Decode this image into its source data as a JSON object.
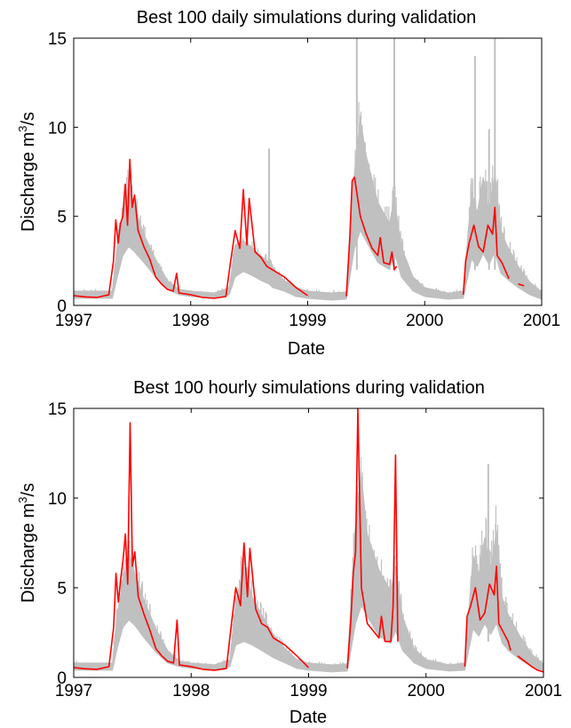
{
  "chart_data": [
    {
      "type": "line",
      "title": "Best 100 daily simulations during validation",
      "xlabel": "Date",
      "ylabel": "Discharge m",
      "ylabel_superscript": "3",
      "ylabel_suffix": "/s",
      "xlim": [
        1997,
        2001
      ],
      "ylim": [
        0,
        15
      ],
      "xticks": [
        1997,
        1998,
        1999,
        2000,
        2001
      ],
      "yticks": [
        0,
        5,
        10,
        15
      ],
      "grid": false,
      "colors": {
        "observed": "#ff0000",
        "simulations": "#c0c0c0"
      },
      "series": [
        {
          "role": "simulation envelope (best 100)",
          "type": "area",
          "x": [
            1997.0,
            1997.33,
            1997.37,
            1997.42,
            1997.47,
            1997.52,
            1997.6,
            1997.7,
            1997.8,
            1997.9,
            1998.0,
            1998.2,
            1998.33,
            1998.38,
            1998.45,
            1998.52,
            1998.6,
            1998.67,
            1998.7,
            1998.8,
            1998.9,
            1999.0,
            1999.2,
            1999.33,
            1999.4,
            1999.45,
            1999.5,
            1999.6,
            1999.7,
            1999.74,
            1999.8,
            1999.9,
            2000.0,
            2000.2,
            2000.33,
            2000.4,
            2000.45,
            2000.5,
            2000.55,
            2000.6,
            2000.65,
            2000.7,
            2000.8,
            2000.9,
            2001.0
          ],
          "low": [
            0.4,
            0.4,
            1.5,
            2.8,
            3.3,
            3.0,
            2.4,
            1.6,
            0.9,
            0.6,
            0.5,
            0.4,
            0.6,
            1.6,
            1.9,
            1.7,
            1.4,
            1.2,
            1.0,
            0.8,
            0.5,
            0.4,
            0.3,
            0.35,
            3.2,
            4.2,
            3.6,
            2.4,
            2.0,
            3.0,
            1.6,
            0.8,
            0.5,
            0.35,
            0.4,
            2.6,
            2.2,
            2.9,
            2.3,
            3.0,
            1.8,
            1.5,
            1.0,
            0.6,
            0.35
          ],
          "high": [
            0.8,
            0.8,
            3.2,
            5.2,
            6.8,
            5.6,
            4.0,
            2.6,
            1.4,
            0.9,
            0.8,
            0.7,
            1.0,
            3.4,
            3.6,
            3.3,
            2.8,
            2.4,
            2.0,
            1.4,
            1.0,
            0.8,
            0.7,
            0.75,
            7.5,
            10.5,
            8.4,
            5.8,
            4.6,
            6.0,
            3.3,
            1.6,
            1.0,
            0.7,
            0.8,
            6.4,
            5.2,
            7.2,
            5.2,
            7.4,
            4.3,
            3.4,
            2.2,
            1.3,
            0.75
          ],
          "peaks": [
            [
              1998.67,
              8.8
            ],
            [
              1999.42,
              15.0
            ],
            [
              1999.74,
              15.0
            ],
            [
              2000.43,
              14.0
            ],
            [
              2000.55,
              9.9
            ],
            [
              2000.6,
              15.0
            ]
          ]
        },
        {
          "name": "observed",
          "role": "observed discharge",
          "x": [
            1997.0,
            1997.1,
            1997.2,
            1997.3,
            1997.34,
            1997.36,
            1997.38,
            1997.4,
            1997.42,
            1997.44,
            1997.46,
            1997.48,
            1997.5,
            1997.52,
            1997.55,
            1997.6,
            1997.65,
            1997.7,
            1997.75,
            1997.8,
            1997.85,
            1997.88,
            1997.9,
            1998.0,
            1998.1,
            1998.2,
            1998.3,
            1998.34,
            1998.38,
            1998.42,
            1998.45,
            1998.48,
            1998.5,
            1998.55,
            1998.6,
            1998.65,
            1998.7,
            1998.8,
            1998.9,
            1999.0
          ],
          "y": [
            0.55,
            0.48,
            0.45,
            0.6,
            2.5,
            4.8,
            3.5,
            4.6,
            5.0,
            6.8,
            4.5,
            8.2,
            5.5,
            6.2,
            4.2,
            3.3,
            2.6,
            1.6,
            1.2,
            0.9,
            0.8,
            1.8,
            0.7,
            0.6,
            0.45,
            0.4,
            0.5,
            2.4,
            4.2,
            3.2,
            6.5,
            3.4,
            6.0,
            3.0,
            2.7,
            2.2,
            2.0,
            1.6,
            1.0,
            0.55
          ]
        },
        {
          "name": "observed",
          "role": "observed discharge (late 1999)",
          "x": [
            1999.33,
            1999.36,
            1999.38,
            1999.4,
            1999.45,
            1999.5,
            1999.55,
            1999.6,
            1999.62,
            1999.65,
            1999.7,
            1999.72,
            1999.74,
            1999.76
          ],
          "y": [
            0.5,
            3.8,
            7.0,
            7.2,
            5.0,
            4.0,
            3.2,
            2.8,
            3.8,
            2.4,
            2.3,
            3.0,
            2.0,
            2.2
          ]
        },
        {
          "name": "observed",
          "role": "observed discharge (2000)",
          "x": [
            2000.33,
            2000.35,
            2000.38,
            2000.42,
            2000.46,
            2000.5,
            2000.54,
            2000.58,
            2000.6,
            2000.62,
            2000.66,
            2000.7,
            2000.72
          ],
          "y": [
            0.6,
            2.5,
            3.5,
            4.5,
            3.3,
            3.0,
            4.5,
            4.0,
            5.5,
            2.8,
            2.4,
            1.8,
            1.5
          ]
        },
        {
          "name": "observed",
          "role": "observed discharge (late 2000)",
          "x": [
            2000.8,
            2000.85
          ],
          "y": [
            1.2,
            1.1
          ]
        }
      ]
    },
    {
      "type": "line",
      "title": "Best 100 hourly simulations during validation",
      "xlabel": "Date",
      "ylabel": "Discharge m",
      "ylabel_superscript": "3",
      "ylabel_suffix": "/s",
      "xlim": [
        1997,
        2001
      ],
      "ylim": [
        0,
        15
      ],
      "xticks": [
        1997,
        1998,
        1999,
        2000,
        2001
      ],
      "yticks": [
        0,
        5,
        10,
        15
      ],
      "grid": false,
      "colors": {
        "observed": "#ff0000",
        "simulations": "#c0c0c0"
      },
      "series": [
        {
          "role": "simulation envelope (best 100)",
          "type": "area",
          "x": [
            1997.0,
            1997.33,
            1997.37,
            1997.42,
            1997.47,
            1997.52,
            1997.6,
            1997.7,
            1997.8,
            1997.9,
            1998.0,
            1998.2,
            1998.33,
            1998.38,
            1998.45,
            1998.52,
            1998.6,
            1998.7,
            1998.8,
            1998.9,
            1999.0,
            1999.2,
            1999.33,
            1999.4,
            1999.45,
            1999.5,
            1999.6,
            1999.7,
            1999.74,
            1999.8,
            1999.9,
            2000.0,
            2000.2,
            2000.33,
            2000.4,
            2000.45,
            2000.5,
            2000.55,
            2000.6,
            2000.65,
            2000.7,
            2000.8,
            2000.9,
            2001.0
          ],
          "low": [
            0.4,
            0.4,
            1.6,
            2.8,
            3.2,
            2.9,
            2.2,
            1.4,
            0.8,
            0.6,
            0.5,
            0.4,
            0.6,
            1.8,
            2.0,
            1.8,
            1.5,
            1.1,
            0.8,
            0.5,
            0.4,
            0.3,
            0.35,
            3.0,
            4.0,
            3.4,
            2.3,
            1.9,
            2.6,
            1.5,
            0.8,
            0.5,
            0.35,
            0.4,
            2.7,
            2.3,
            3.0,
            2.4,
            3.0,
            1.9,
            1.5,
            1.0,
            0.6,
            0.35
          ],
          "high": [
            0.8,
            0.8,
            3.5,
            5.4,
            7.0,
            5.8,
            4.3,
            2.7,
            1.5,
            0.9,
            0.8,
            0.7,
            1.0,
            4.2,
            6.2,
            4.5,
            3.5,
            2.4,
            1.6,
            1.0,
            0.8,
            0.7,
            0.75,
            8.6,
            11.2,
            8.0,
            6.0,
            4.8,
            6.2,
            3.4,
            1.6,
            1.0,
            0.7,
            0.8,
            6.8,
            5.8,
            7.8,
            6.0,
            8.2,
            4.4,
            3.5,
            2.3,
            1.3,
            0.75
          ],
          "peaks": [
            [
              2000.53,
              11.9
            ]
          ]
        },
        {
          "name": "observed",
          "role": "observed discharge",
          "x": [
            1997.0,
            1997.1,
            1997.2,
            1997.3,
            1997.34,
            1997.36,
            1997.38,
            1997.4,
            1997.42,
            1997.44,
            1997.46,
            1997.48,
            1997.5,
            1997.52,
            1997.55,
            1997.6,
            1997.65,
            1997.7,
            1997.75,
            1997.8,
            1997.85,
            1997.88,
            1997.9,
            1998.0,
            1998.1,
            1998.2,
            1998.3,
            1998.34,
            1998.38,
            1998.42,
            1998.45,
            1998.48,
            1998.5,
            1998.55,
            1998.6,
            1998.65,
            1998.7,
            1998.8,
            1998.9,
            1999.0
          ],
          "y": [
            0.55,
            0.48,
            0.45,
            0.6,
            2.8,
            5.8,
            4.2,
            5.5,
            6.5,
            8.0,
            5.2,
            14.2,
            6.2,
            7.0,
            4.5,
            3.5,
            2.6,
            1.6,
            1.2,
            0.9,
            0.8,
            3.2,
            0.7,
            0.6,
            0.45,
            0.4,
            0.5,
            2.8,
            5.0,
            4.0,
            7.5,
            4.5,
            7.2,
            3.8,
            3.0,
            2.8,
            2.2,
            1.8,
            1.2,
            0.55
          ]
        },
        {
          "name": "observed",
          "role": "observed discharge (late 1999)",
          "x": [
            1999.33,
            1999.36,
            1999.38,
            1999.4,
            1999.42,
            1999.45,
            1999.5,
            1999.55,
            1999.6,
            1999.62,
            1999.65,
            1999.7,
            1999.72,
            1999.74,
            1999.76
          ],
          "y": [
            0.5,
            3.2,
            5.8,
            7.0,
            15.0,
            5.0,
            3.0,
            2.6,
            2.2,
            3.4,
            2.0,
            2.0,
            4.0,
            12.4,
            2.0
          ]
        },
        {
          "name": "observed",
          "role": "observed discharge (2000)",
          "x": [
            2000.33,
            2000.35,
            2000.38,
            2000.42,
            2000.46,
            2000.5,
            2000.54,
            2000.58,
            2000.6,
            2000.62,
            2000.66,
            2000.7,
            2000.72
          ],
          "y": [
            0.6,
            3.4,
            4.0,
            5.0,
            3.2,
            3.6,
            5.2,
            4.6,
            6.2,
            3.0,
            2.5,
            2.0,
            1.5
          ]
        },
        {
          "name": "observed",
          "role": "observed discharge (late 2000)",
          "x": [
            2000.78,
            2000.82,
            2000.86,
            2000.9,
            2000.95,
            2001.0
          ],
          "y": [
            1.2,
            1.0,
            0.8,
            0.6,
            0.4,
            0.3
          ]
        }
      ]
    }
  ]
}
